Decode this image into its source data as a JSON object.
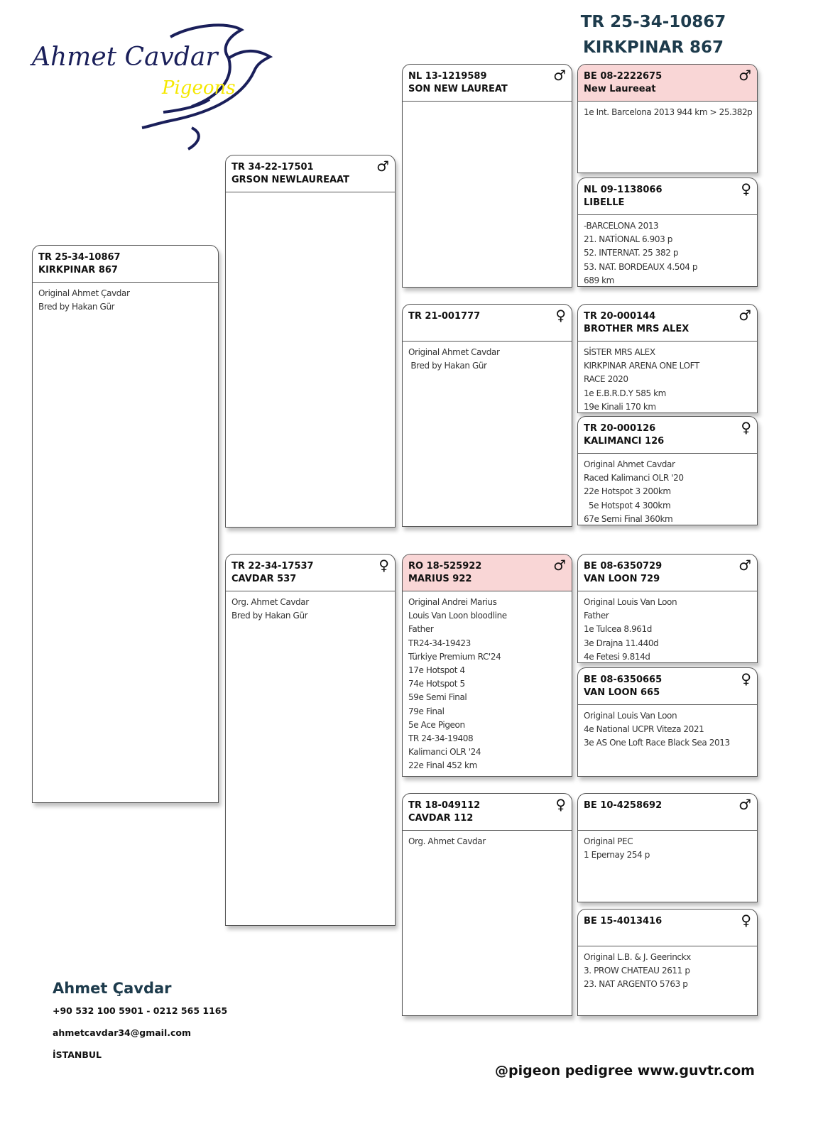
{
  "header": {
    "ring": "TR 25-34-10867",
    "name": "KIRKPINAR 867"
  },
  "logo": {
    "text": "Ahmet Cavdar",
    "sub": "Pigeons"
  },
  "colors": {
    "title": "#1d3b4c",
    "highlight": "#f9d6d6",
    "logo_script": "#1a1f5a",
    "logo_sub": "#f5e800"
  },
  "cards": [
    {
      "ring": "TR 25-34-10867",
      "name": "KIRKPINAR 867",
      "sex": "",
      "highlight": false,
      "notes": [
        "Original Ahmet Çavdar",
        "Bred by Hakan Gür"
      ]
    },
    {
      "ring": "TR 34-22-17501",
      "name": "GRSON NEWLAUREAAT",
      "sex": "♂",
      "highlight": false,
      "notes": []
    },
    {
      "ring": "TR 22-34-17537",
      "name": "CAVDAR 537",
      "sex": "♀",
      "highlight": false,
      "notes": [
        "Org. Ahmet Cavdar",
        "Bred by Hakan Gür"
      ]
    },
    {
      "ring": "NL 13-1219589",
      "name": "SON NEW LAUREAT",
      "sex": "♂",
      "highlight": false,
      "notes": []
    },
    {
      "ring": "TR 21-001777",
      "name": "",
      "sex": "♀",
      "highlight": false,
      "notes": [
        "Original Ahmet Cavdar",
        " Bred by Hakan Gür"
      ]
    },
    {
      "ring": "RO 18-525922",
      "name": "MARIUS 922",
      "sex": "♂",
      "highlight": true,
      "notes": [
        "Original Andrei Marius",
        "Louis Van Loon bloodline",
        "Father",
        "TR24-34-19423",
        "Türkiye Premium RC'24",
        "17e Hotspot 4",
        "74e Hotspot 5",
        "59e Semi Final",
        "79e Final",
        "5e Ace Pigeon",
        "TR 24-34-19408",
        "Kalimanci OLR '24",
        "22e Final 452 km"
      ]
    },
    {
      "ring": "TR 18-049112",
      "name": "CAVDAR 112",
      "sex": "♀",
      "highlight": false,
      "notes": [
        "Org. Ahmet Cavdar"
      ]
    },
    {
      "ring": "BE 08-2222675",
      "name": "New Laureeat",
      "sex": "♂",
      "highlight": true,
      "notes": [
        "1e Int. Barcelona 2013 944 km > 25.382p"
      ]
    },
    {
      "ring": "NL 09-1138066",
      "name": "LIBELLE",
      "sex": "♀",
      "highlight": false,
      "notes": [
        "-BARCELONA 2013",
        "21. NATİONAL 6.903 p",
        "52. INTERNAT. 25 382 p",
        "53. NAT. BORDEAUX 4.504 p",
        "689 km"
      ]
    },
    {
      "ring": "TR 20-000144",
      "name": "BROTHER MRS ALEX",
      "sex": "♂",
      "highlight": false,
      "notes": [
        "SİSTER MRS ALEX",
        "KIRKPINAR ARENA ONE LOFT",
        "RACE 2020",
        "1e E.B.R.D.Y 585 km",
        "19e Kinali 170 km"
      ]
    },
    {
      "ring": "TR 20-000126",
      "name": "KALIMANCI 126",
      "sex": "♀",
      "highlight": false,
      "notes": [
        "Original Ahmet Cavdar",
        "Raced Kalimanci OLR '20",
        "22e Hotspot 3 200km",
        "  5e Hotspot 4 300km",
        "67e Semi Final 360km"
      ]
    },
    {
      "ring": "BE 08-6350729",
      "name": "VAN LOON 729",
      "sex": "♂",
      "highlight": false,
      "notes": [
        "Original Louis Van Loon",
        "Father",
        "1e Tulcea 8.961d",
        "3e Drajna 11.440d",
        "4e Fetesi 9.814d"
      ]
    },
    {
      "ring": "BE 08-6350665",
      "name": "VAN LOON 665",
      "sex": "♀",
      "highlight": false,
      "notes": [
        "Original Louis Van Loon",
        "4e National UCPR Viteza 2021",
        "3e AS One Loft Race Black Sea 2013"
      ]
    },
    {
      "ring": "BE 10-4258692",
      "name": "",
      "sex": "♂",
      "highlight": false,
      "notes": [
        "Original PEC",
        "1 Epernay 254 p"
      ]
    },
    {
      "ring": "BE 15-4013416",
      "name": "",
      "sex": "♀",
      "highlight": false,
      "notes": [
        "Original L.B. & J. Geerinckx",
        "3. PROW CHATEAU 2611 p",
        "23. NAT ARGENTO 5763 p"
      ]
    }
  ],
  "contact": {
    "name": "Ahmet Çavdar",
    "phone": "+90 532 100 5901 - 0212 565 1165",
    "email": "ahmetcavdar34@gmail.com",
    "city": "İSTANBUL"
  },
  "footer": "@pigeon pedigree www.guvtr.com"
}
